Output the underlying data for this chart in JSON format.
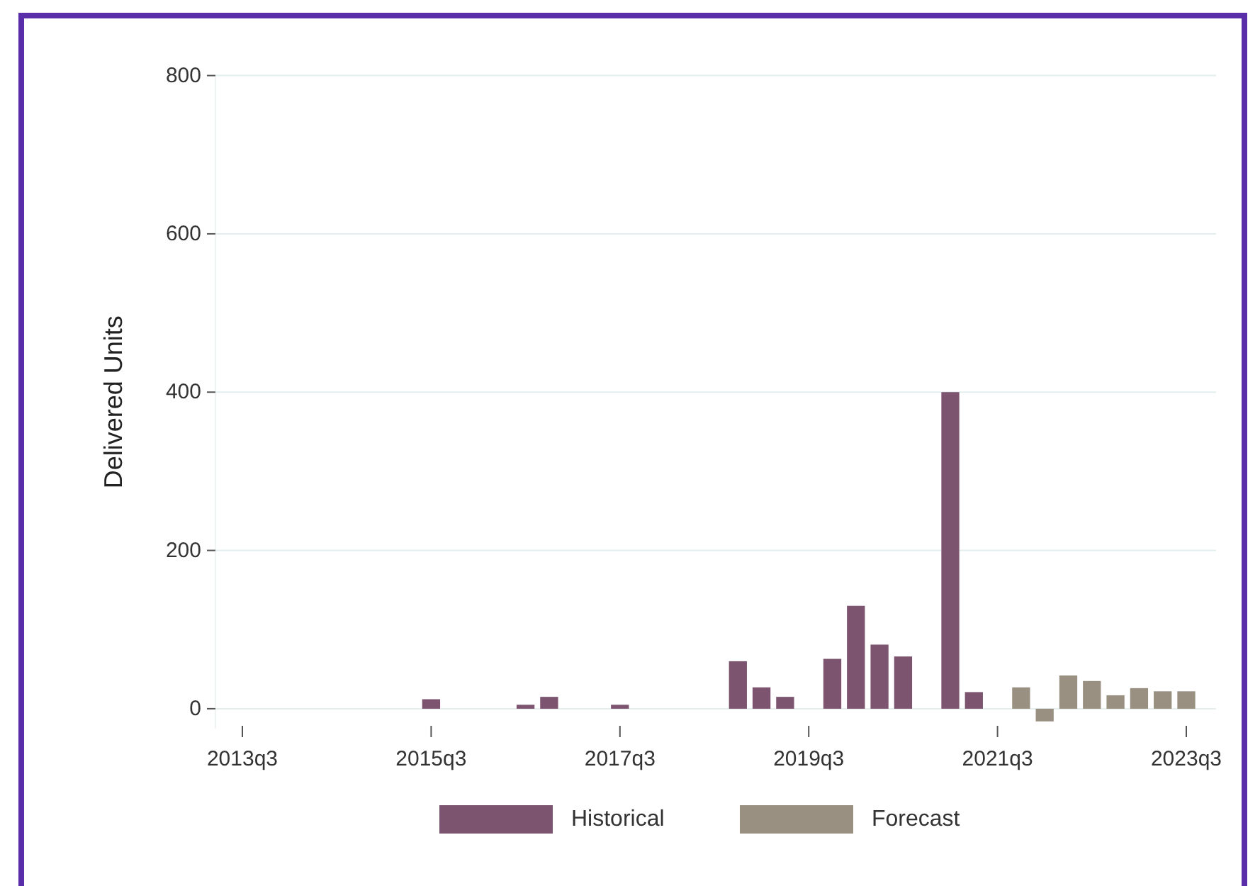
{
  "chart_data": {
    "type": "bar",
    "ylabel": "Delivered Units",
    "categories": [
      "2013q3",
      null,
      null,
      null,
      null,
      null,
      null,
      null,
      "2015q3",
      null,
      null,
      null,
      null,
      null,
      null,
      null,
      "2017q3",
      null,
      null,
      null,
      null,
      null,
      null,
      null,
      "2019q3",
      null,
      null,
      null,
      null,
      null,
      null,
      null,
      "2021q3",
      null,
      null,
      null,
      null,
      null,
      null,
      null,
      "2023q3"
    ],
    "series": [
      {
        "name": "Historical",
        "color": "#7d5470",
        "values": [
          null,
          null,
          null,
          null,
          null,
          null,
          null,
          null,
          12,
          null,
          null,
          null,
          5,
          15,
          null,
          null,
          5,
          null,
          null,
          null,
          null,
          60,
          27,
          15,
          null,
          63,
          130,
          81,
          66,
          null,
          400,
          21,
          null,
          null,
          null,
          null,
          null,
          null,
          null,
          null,
          null
        ]
      },
      {
        "name": "Forecast",
        "color": "#9a9082",
        "values": [
          null,
          null,
          null,
          null,
          null,
          null,
          null,
          null,
          null,
          null,
          null,
          null,
          null,
          null,
          null,
          null,
          null,
          null,
          null,
          null,
          null,
          null,
          null,
          null,
          null,
          null,
          null,
          null,
          null,
          null,
          null,
          null,
          null,
          27,
          -16,
          42,
          35,
          17,
          26,
          22,
          22
        ]
      }
    ],
    "ylim": [
      -25,
      800
    ],
    "yticks": [
      0,
      200,
      400,
      600,
      800
    ],
    "grid": "y",
    "legend": "bottom"
  }
}
